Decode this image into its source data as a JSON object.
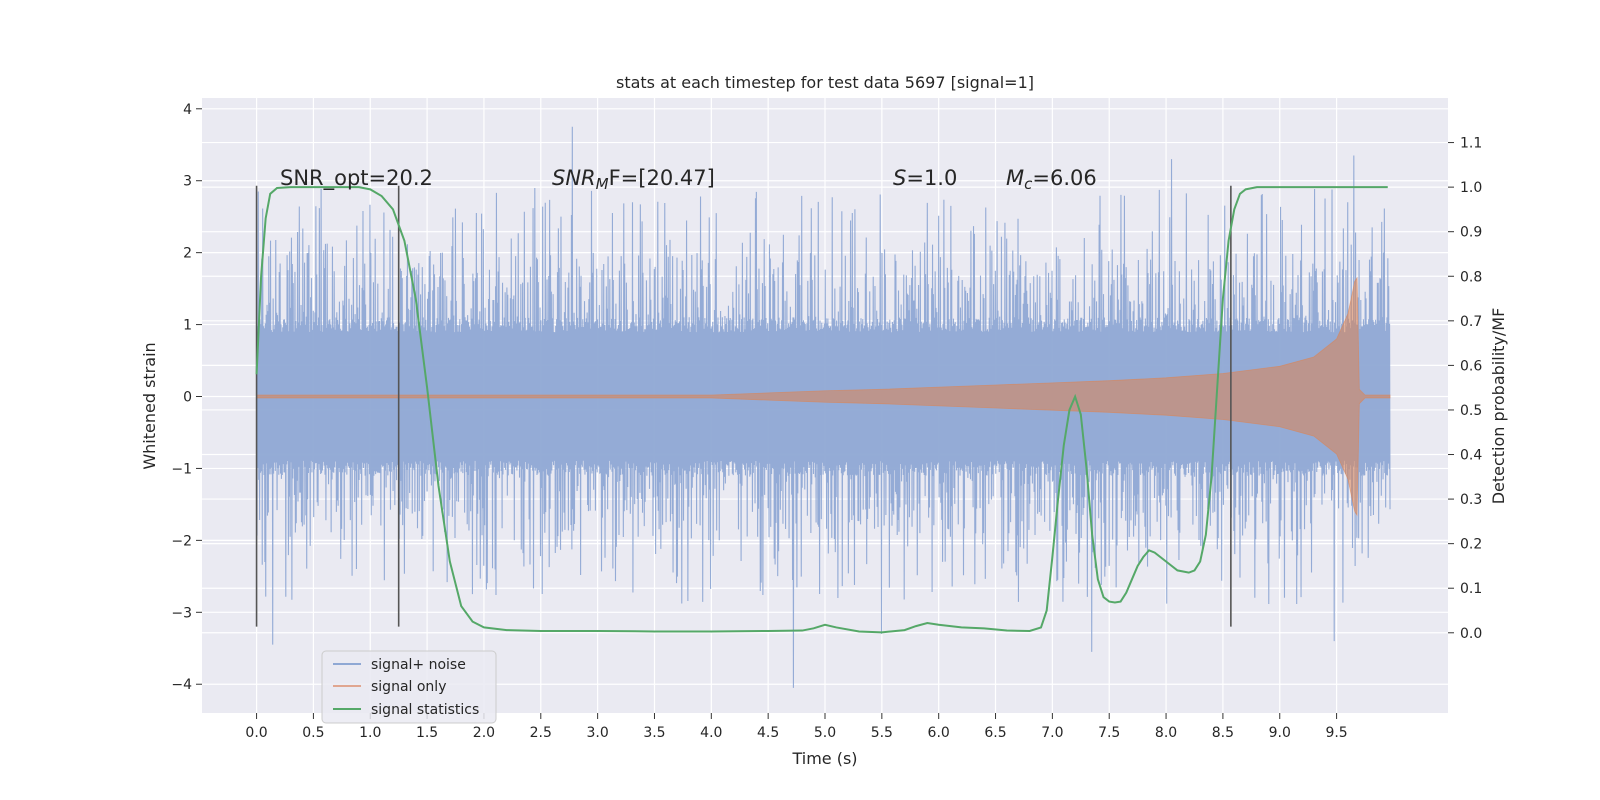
{
  "chart_data": {
    "type": "line",
    "title": "stats at each timestep for test data 5697 [signal=1]",
    "xlabel": "Time (s)",
    "ylabel": "Whitened strain",
    "y2label": "Detection probability/MF",
    "xlim": [
      -0.48,
      10.48
    ],
    "ylim": [
      -4.4,
      4.15
    ],
    "y2lim": [
      -0.18,
      1.2
    ],
    "xticks": [
      0.0,
      0.5,
      1.0,
      1.5,
      2.0,
      2.5,
      3.0,
      3.5,
      4.0,
      4.5,
      5.0,
      5.5,
      6.0,
      6.5,
      7.0,
      7.5,
      8.0,
      8.5,
      9.0,
      9.5
    ],
    "xtick_labels": [
      "0.0",
      "0.5",
      "1.0",
      "1.5",
      "2.0",
      "2.5",
      "3.0",
      "3.5",
      "4.0",
      "4.5",
      "5.0",
      "5.5",
      "6.0",
      "6.5",
      "7.0",
      "7.5",
      "8.0",
      "8.5",
      "9.0",
      "9.5"
    ],
    "yticks": [
      -4,
      -3,
      -2,
      -1,
      0,
      1,
      2,
      3,
      4
    ],
    "ytick_labels": [
      "−4",
      "−3",
      "−2",
      "−1",
      "0",
      "1",
      "2",
      "3",
      "4"
    ],
    "y2ticks": [
      0.0,
      0.1,
      0.2,
      0.3,
      0.4,
      0.5,
      0.6,
      0.7,
      0.8,
      0.9,
      1.0,
      1.1
    ],
    "y2tick_labels": [
      "0.0",
      "0.1",
      "0.2",
      "0.3",
      "0.4",
      "0.5",
      "0.6",
      "0.7",
      "0.8",
      "0.9",
      "1.0",
      "1.1"
    ],
    "grid": true,
    "legend": {
      "placement": "lower-left",
      "entries": [
        {
          "label": "signal+ noise",
          "color": "#8fa8d4"
        },
        {
          "label": "signal only",
          "color": "#e0a690"
        },
        {
          "label": "signal statistics",
          "color": "#55a868"
        }
      ]
    },
    "annotations": {
      "snr_opt": "SNR_opt=20.2",
      "snr_mf_base": "SNR",
      "snr_mf_sub": "M",
      "snr_mf_tail": "F=[20.47]",
      "s_base": "S",
      "s_tail": "=1.0",
      "mc_base": "M",
      "mc_sub": "c",
      "mc_tail": "=6.06"
    },
    "noise_series": {
      "name": "signal+ noise",
      "color": "#8fa8d4",
      "t_range": [
        0.0,
        9.97
      ],
      "core_amplitude": 1.05,
      "typical_peak": [
        -2.0,
        2.0
      ],
      "extreme_values": [
        {
          "x": 0.14,
          "y": -3.45
        },
        {
          "x": 2.78,
          "y": 3.75
        },
        {
          "x": 4.72,
          "y": -4.05
        },
        {
          "x": 5.5,
          "y": -3.3
        },
        {
          "x": 7.35,
          "y": -3.55
        },
        {
          "x": 8.05,
          "y": 3.3
        },
        {
          "x": 9.65,
          "y": 3.35
        },
        {
          "x": 9.48,
          "y": -3.4
        }
      ]
    },
    "signal_series": {
      "name": "signal only",
      "color": "#dd8452",
      "envelope": [
        [
          0.0,
          0.02
        ],
        [
          4.0,
          0.02
        ],
        [
          4.5,
          0.05
        ],
        [
          5.0,
          0.08
        ],
        [
          5.5,
          0.1
        ],
        [
          6.0,
          0.13
        ],
        [
          6.5,
          0.16
        ],
        [
          7.0,
          0.19
        ],
        [
          7.5,
          0.22
        ],
        [
          8.0,
          0.26
        ],
        [
          8.5,
          0.32
        ],
        [
          9.0,
          0.42
        ],
        [
          9.3,
          0.55
        ],
        [
          9.5,
          0.8
        ],
        [
          9.6,
          1.15
        ],
        [
          9.66,
          1.6
        ],
        [
          9.68,
          1.65
        ],
        [
          9.7,
          0.1
        ],
        [
          9.75,
          0.02
        ],
        [
          9.97,
          0.02
        ]
      ]
    },
    "statistic_series": {
      "name": "signal statistics",
      "color": "#55a868",
      "x": [
        0.0,
        0.04,
        0.08,
        0.12,
        0.18,
        0.3,
        0.5,
        0.7,
        0.9,
        1.0,
        1.1,
        1.2,
        1.3,
        1.4,
        1.5,
        1.6,
        1.7,
        1.8,
        1.9,
        2.0,
        2.2,
        2.5,
        3.0,
        3.5,
        4.0,
        4.5,
        4.8,
        4.9,
        5.0,
        5.1,
        5.3,
        5.5,
        5.7,
        5.8,
        5.9,
        6.0,
        6.2,
        6.4,
        6.6,
        6.8,
        6.9,
        6.95,
        7.0,
        7.05,
        7.1,
        7.15,
        7.2,
        7.25,
        7.3,
        7.35,
        7.4,
        7.45,
        7.5,
        7.55,
        7.6,
        7.65,
        7.7,
        7.75,
        7.8,
        7.85,
        7.9,
        8.0,
        8.1,
        8.2,
        8.25,
        8.3,
        8.35,
        8.4,
        8.45,
        8.5,
        8.55,
        8.6,
        8.65,
        8.7,
        8.8,
        9.0,
        9.5,
        9.95
      ],
      "y": [
        0.58,
        0.8,
        0.93,
        0.985,
        0.998,
        1.0,
        1.0,
        1.0,
        1.0,
        0.995,
        0.98,
        0.95,
        0.88,
        0.75,
        0.55,
        0.33,
        0.16,
        0.06,
        0.025,
        0.012,
        0.006,
        0.004,
        0.004,
        0.003,
        0.003,
        0.004,
        0.005,
        0.01,
        0.018,
        0.012,
        0.003,
        0.001,
        0.006,
        0.015,
        0.022,
        0.018,
        0.012,
        0.01,
        0.005,
        0.004,
        0.012,
        0.05,
        0.17,
        0.3,
        0.42,
        0.5,
        0.53,
        0.49,
        0.37,
        0.22,
        0.12,
        0.08,
        0.07,
        0.068,
        0.07,
        0.09,
        0.12,
        0.15,
        0.17,
        0.185,
        0.18,
        0.16,
        0.14,
        0.135,
        0.14,
        0.16,
        0.22,
        0.35,
        0.55,
        0.75,
        0.88,
        0.95,
        0.985,
        0.995,
        1.0,
        1.0,
        1.0,
        1.0
      ]
    },
    "vertical_markers": [
      {
        "x": 0.0,
        "ymin": -3.2,
        "ymax": 2.93
      },
      {
        "x": 1.25,
        "ymin": -3.2,
        "ymax": 2.93
      },
      {
        "x": 8.57,
        "ymin": -3.2,
        "ymax": 2.93
      }
    ],
    "colors": {
      "background": "#eaeaf2",
      "grid": "#ffffff",
      "marker_line": "#555555"
    }
  }
}
